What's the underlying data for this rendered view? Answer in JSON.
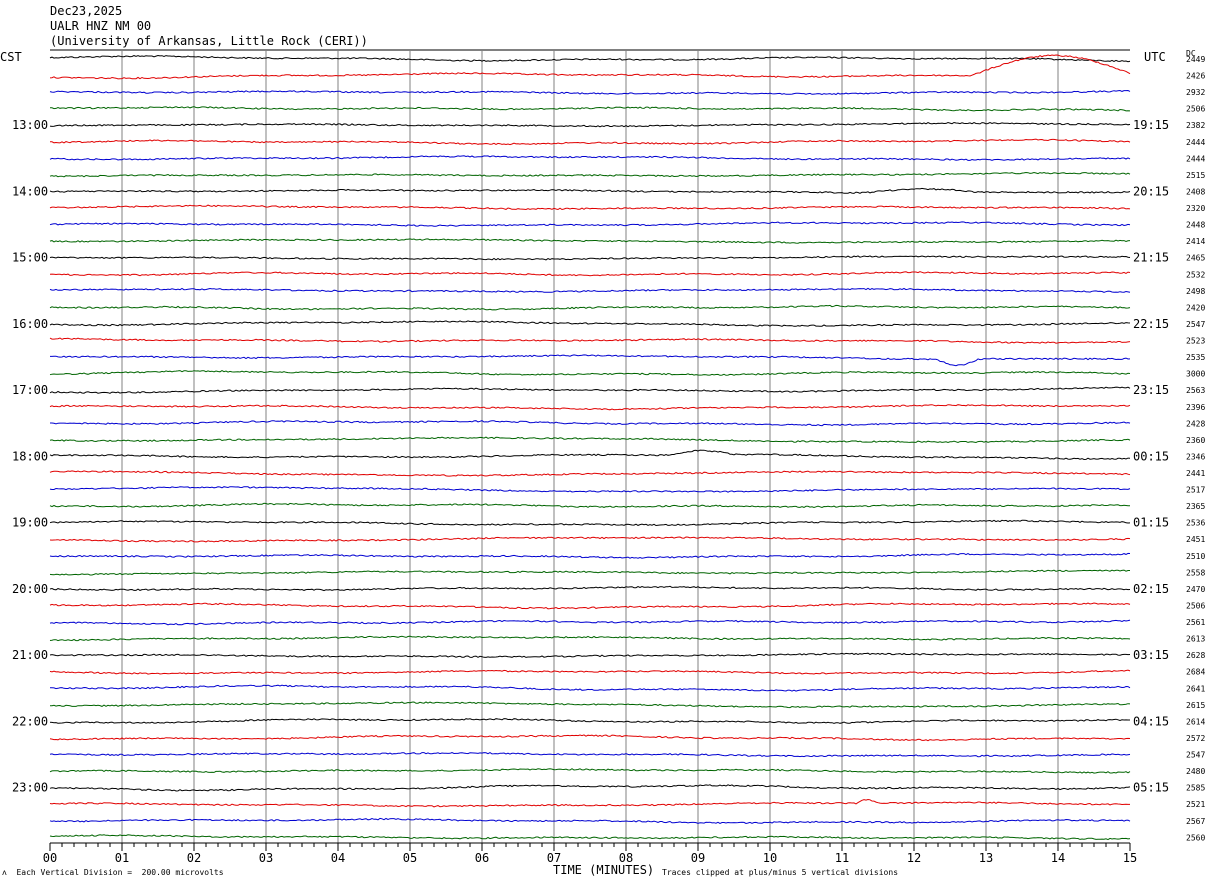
{
  "header": {
    "date": "Dec23,2025",
    "station": "UALR HNZ NM 00",
    "institution": "(University of Arkansas, Little Rock (CERI))"
  },
  "left_timezone": "CST",
  "right_timezone": "UTC",
  "dc_header": "DC",
  "footer": {
    "scale_note": "Each Vertical Division =  200.00 microvolts",
    "axis_title": "TIME (MINUTES)",
    "clip_note": "Traces clipped at plus/minus 5 vertical divisions"
  },
  "colors": {
    "trace_cycle": [
      "#000000",
      "#e00000",
      "#0000d0",
      "#006400"
    ],
    "grid": "#808080"
  },
  "chart_data": {
    "type": "line",
    "title": "UALR HNZ NM 00",
    "xlabel": "TIME (MINUTES)",
    "x_ticks": [
      "00",
      "01",
      "02",
      "03",
      "04",
      "05",
      "06",
      "07",
      "08",
      "09",
      "10",
      "11",
      "12",
      "13",
      "14",
      "15"
    ],
    "xlim": [
      0,
      15
    ],
    "trace_count": 48,
    "left_hour_labels": [
      "13:00",
      "14:00",
      "15:00",
      "16:00",
      "17:00",
      "18:00",
      "19:00",
      "20:00",
      "21:00",
      "22:00",
      "23:00"
    ],
    "right_hour_labels": [
      "19:15",
      "20:15",
      "21:15",
      "22:15",
      "23:15",
      "00:15",
      "01:15",
      "02:15",
      "03:15",
      "04:15",
      "05:15"
    ],
    "dc_offsets": [
      2449,
      2426,
      2932,
      2506,
      2382,
      2444,
      2444,
      2515,
      2408,
      2320,
      2448,
      2414,
      2465,
      2532,
      2498,
      2420,
      2547,
      2523,
      2535,
      3000,
      2563,
      2396,
      2428,
      2360,
      2346,
      2441,
      2517,
      2365,
      2536,
      2451,
      2510,
      2558,
      2470,
      2506,
      2561,
      2613,
      2628,
      2684,
      2641,
      2615,
      2614,
      2572,
      2547,
      2480,
      2585,
      2521,
      2567,
      2560
    ],
    "events": [
      {
        "trace": 1,
        "start_min": 12.8,
        "end_min": 15.0,
        "peak_divisions": -3.2
      },
      {
        "trace": 8,
        "start_min": 11.3,
        "end_min": 12.9,
        "peak_divisions": -0.6
      },
      {
        "trace": 18,
        "start_min": 12.3,
        "end_min": 12.9,
        "peak_divisions": 1.0
      },
      {
        "trace": 24,
        "start_min": 8.6,
        "end_min": 9.5,
        "peak_divisions": -0.7
      },
      {
        "trace": 45,
        "start_min": 11.2,
        "end_min": 11.5,
        "peak_divisions": -0.6
      }
    ]
  }
}
